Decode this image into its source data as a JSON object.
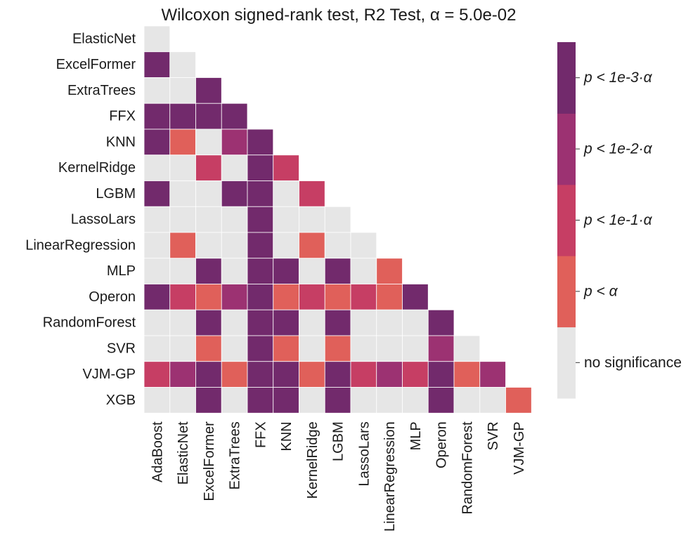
{
  "chart_data": {
    "type": "heatmap",
    "title": "Wilcoxon signed-rank test, R2 Test, α =  5.0e-02",
    "y_categories": [
      "ElasticNet",
      "ExcelFormer",
      "ExtraTrees",
      "FFX",
      "KNN",
      "KernelRidge",
      "LGBM",
      "LassoLars",
      "LinearRegression",
      "MLP",
      "Operon",
      "RandomForest",
      "SVR",
      "VJM-GP",
      "XGB"
    ],
    "x_categories": [
      "AdaBoost",
      "ElasticNet",
      "ExcelFormer",
      "ExtraTrees",
      "FFX",
      "KNN",
      "KernelRidge",
      "LGBM",
      "LassoLars",
      "LinearRegression",
      "MLP",
      "Operon",
      "RandomForest",
      "SVR",
      "VJM-GP"
    ],
    "value_scale": {
      "0": "no significance",
      "1": "p < α",
      "2": "p < 1e-1·α",
      "3": "p < 1e-2·α",
      "4": "p < 1e-3·α"
    },
    "matrix": [
      [
        0
      ],
      [
        4,
        0
      ],
      [
        0,
        0,
        4
      ],
      [
        4,
        4,
        4,
        4
      ],
      [
        4,
        1,
        0,
        3,
        4
      ],
      [
        0,
        0,
        2,
        0,
        4,
        2
      ],
      [
        4,
        0,
        0,
        4,
        4,
        0,
        2
      ],
      [
        0,
        0,
        0,
        0,
        4,
        0,
        0,
        0
      ],
      [
        0,
        1,
        0,
        0,
        4,
        0,
        1,
        0,
        0
      ],
      [
        0,
        0,
        4,
        0,
        4,
        4,
        0,
        4,
        0,
        1
      ],
      [
        4,
        2,
        1,
        3,
        4,
        1,
        2,
        1,
        2,
        1,
        4
      ],
      [
        0,
        0,
        4,
        0,
        4,
        4,
        0,
        4,
        0,
        0,
        0,
        4
      ],
      [
        0,
        0,
        1,
        0,
        4,
        1,
        0,
        1,
        0,
        0,
        0,
        3,
        0
      ],
      [
        2,
        3,
        4,
        1,
        4,
        4,
        1,
        4,
        2,
        3,
        2,
        4,
        1,
        3
      ],
      [
        0,
        0,
        4,
        0,
        4,
        4,
        0,
        4,
        0,
        0,
        0,
        4,
        0,
        0,
        1
      ]
    ],
    "colorbar": {
      "labels": [
        "no significance",
        "p < α",
        "p < 1e-1·α",
        "p < 1e-2·α",
        "p < 1e-3·α"
      ],
      "colors": [
        "#e6e6e6",
        "#e0605a",
        "#c63e64",
        "#9c3272",
        "#722a6c"
      ]
    }
  }
}
